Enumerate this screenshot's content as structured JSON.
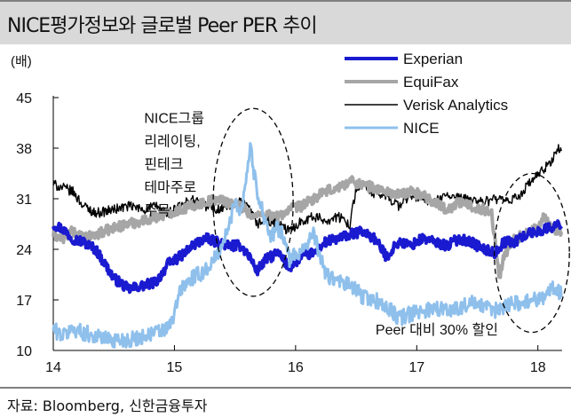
{
  "title": "NICE평가정보와 글로벌 Peer PER 추이",
  "source": "자료: Bloomberg, 신한금융투자",
  "chart_data": {
    "type": "line",
    "ylabel": "(배)",
    "ylim": [
      10,
      45
    ],
    "yticks": [
      "45",
      "38",
      "31",
      "24",
      "17",
      "10"
    ],
    "ytick_values": [
      45,
      38,
      31,
      24,
      17,
      10
    ],
    "xlim": [
      2014.0,
      2018.2
    ],
    "xticks": [
      "14",
      "15",
      "16",
      "17",
      "18"
    ],
    "xtick_values": [
      2014,
      2015,
      2016,
      2017,
      2018
    ],
    "legend_position": "top-right",
    "series": [
      {
        "name": "Experian",
        "color": "#1a1ad0",
        "stroke": 4,
        "x": [
          2014.0,
          2014.08,
          2014.16,
          2014.25,
          2014.35,
          2014.5,
          2014.62,
          2014.75,
          2014.85,
          2014.95,
          2015.05,
          2015.15,
          2015.25,
          2015.35,
          2015.45,
          2015.55,
          2015.62,
          2015.68,
          2015.75,
          2015.85,
          2015.95,
          2016.05,
          2016.15,
          2016.25,
          2016.35,
          2016.45,
          2016.55,
          2016.65,
          2016.75,
          2016.85,
          2016.95,
          2017.05,
          2017.15,
          2017.25,
          2017.35,
          2017.45,
          2017.55,
          2017.65,
          2017.72,
          2017.8,
          2017.9,
          2018.0,
          2018.1,
          2018.2
        ],
        "y": [
          27.5,
          26.8,
          25.5,
          25.0,
          24.0,
          20.0,
          18.5,
          19.0,
          19.5,
          22.0,
          23.0,
          24.5,
          25.5,
          25.0,
          24.5,
          24.5,
          23.0,
          21.0,
          22.5,
          23.5,
          21.5,
          23.0,
          23.5,
          25.0,
          25.5,
          26.0,
          26.5,
          25.5,
          23.0,
          25.0,
          24.5,
          25.5,
          25.0,
          24.5,
          25.5,
          25.0,
          24.0,
          23.5,
          25.0,
          25.0,
          26.0,
          26.5,
          27.0,
          27.5
        ]
      },
      {
        "name": "EquiFax",
        "color": "#a6a6a6",
        "stroke": 4,
        "x": [
          2014.0,
          2014.08,
          2014.16,
          2014.25,
          2014.35,
          2014.5,
          2014.62,
          2014.75,
          2014.85,
          2014.95,
          2015.05,
          2015.15,
          2015.25,
          2015.35,
          2015.45,
          2015.55,
          2015.65,
          2015.75,
          2015.85,
          2015.95,
          2016.05,
          2016.15,
          2016.25,
          2016.35,
          2016.45,
          2016.55,
          2016.65,
          2016.75,
          2016.85,
          2016.95,
          2017.05,
          2017.15,
          2017.25,
          2017.35,
          2017.45,
          2017.55,
          2017.62,
          2017.68,
          2017.72,
          2017.8,
          2017.9,
          2018.0,
          2018.05,
          2018.1,
          2018.2
        ],
        "y": [
          26.0,
          25.5,
          26.5,
          25.5,
          26.0,
          27.0,
          27.5,
          28.0,
          28.5,
          29.0,
          29.5,
          30.0,
          30.5,
          31.0,
          30.5,
          30.0,
          28.5,
          29.0,
          28.5,
          29.5,
          30.0,
          31.0,
          32.0,
          32.5,
          33.5,
          33.0,
          32.5,
          32.0,
          31.5,
          32.0,
          31.5,
          30.5,
          29.5,
          30.5,
          30.0,
          29.5,
          29.0,
          20.0,
          23.0,
          25.5,
          26.0,
          27.0,
          28.5,
          27.0,
          26.5
        ]
      },
      {
        "name": "Verisk Analytics",
        "color": "#000000",
        "stroke": 1.4,
        "x": [
          2014.0,
          2014.08,
          2014.16,
          2014.25,
          2014.35,
          2014.5,
          2014.62,
          2014.75,
          2014.85,
          2014.95,
          2015.05,
          2015.15,
          2015.25,
          2015.35,
          2015.45,
          2015.55,
          2015.62,
          2015.68,
          2015.75,
          2015.85,
          2015.95,
          2016.05,
          2016.15,
          2016.25,
          2016.35,
          2016.45,
          2016.5,
          2016.55,
          2016.65,
          2016.75,
          2016.85,
          2016.95,
          2017.05,
          2017.15,
          2017.25,
          2017.35,
          2017.45,
          2017.55,
          2017.65,
          2017.75,
          2017.85,
          2017.95,
          2018.05,
          2018.12,
          2018.17,
          2018.2
        ],
        "y": [
          33.0,
          32.5,
          32.0,
          30.0,
          29.0,
          29.5,
          30.0,
          29.5,
          30.0,
          29.0,
          30.0,
          31.0,
          30.0,
          29.5,
          30.0,
          30.5,
          29.5,
          27.5,
          28.0,
          27.5,
          26.5,
          28.0,
          28.5,
          28.0,
          28.5,
          27.5,
          32.5,
          33.0,
          31.5,
          31.5,
          30.0,
          31.5,
          31.0,
          30.5,
          31.5,
          31.0,
          31.0,
          30.5,
          31.0,
          30.5,
          31.5,
          33.5,
          35.0,
          36.5,
          38.0,
          37.0
        ]
      },
      {
        "name": "NICE",
        "color": "#8fc0ec",
        "stroke": 3,
        "x": [
          2014.0,
          2014.08,
          2014.16,
          2014.25,
          2014.35,
          2014.45,
          2014.55,
          2014.65,
          2014.75,
          2014.85,
          2014.95,
          2015.0,
          2015.05,
          2015.15,
          2015.25,
          2015.35,
          2015.45,
          2015.5,
          2015.55,
          2015.6,
          2015.63,
          2015.66,
          2015.7,
          2015.75,
          2015.8,
          2015.85,
          2015.9,
          2015.95,
          2016.05,
          2016.15,
          2016.25,
          2016.35,
          2016.45,
          2016.55,
          2016.65,
          2016.75,
          2016.85,
          2016.95,
          2017.05,
          2017.15,
          2017.25,
          2017.35,
          2017.45,
          2017.55,
          2017.65,
          2017.75,
          2017.85,
          2017.95,
          2018.05,
          2018.12,
          2018.2
        ],
        "y": [
          13.0,
          12.0,
          13.0,
          12.5,
          12.0,
          11.5,
          11.5,
          11.5,
          12.0,
          12.5,
          13.0,
          15.0,
          18.5,
          20.0,
          21.0,
          23.0,
          27.0,
          31.0,
          29.0,
          35.0,
          38.5,
          34.0,
          31.0,
          28.0,
          25.5,
          27.0,
          26.0,
          22.5,
          24.0,
          26.0,
          20.5,
          19.5,
          19.0,
          17.5,
          17.0,
          16.0,
          14.5,
          15.0,
          15.5,
          16.0,
          15.5,
          16.0,
          16.5,
          16.0,
          15.5,
          16.5,
          16.5,
          17.0,
          17.5,
          18.5,
          18.0
        ]
      }
    ],
    "annotations": [
      {
        "lines": [
          "NICE그룹",
          "리레이팅,",
          "핀테크",
          "테마주로",
          "주목"
        ],
        "x": 2014.75,
        "y": 41.5
      },
      {
        "lines": [
          "Peer 대비 30% 할인"
        ],
        "x": 2016.66,
        "y": 12.2
      }
    ],
    "ellipses": [
      {
        "cx": 2015.65,
        "cy": 30.5,
        "rx": 0.33,
        "ry": 13.0
      },
      {
        "cx": 2017.95,
        "cy": 23.5,
        "rx": 0.31,
        "ry": 11.0
      }
    ]
  }
}
